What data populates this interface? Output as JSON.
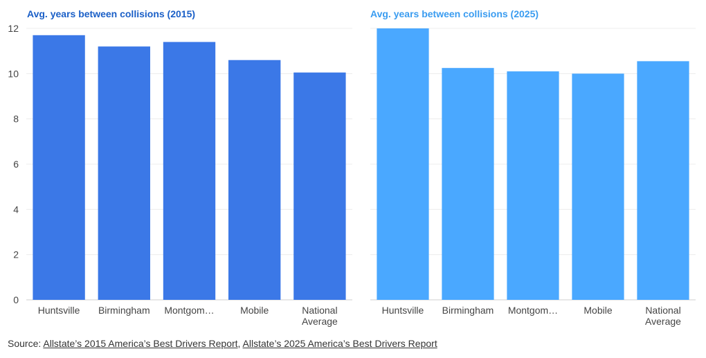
{
  "chart_data": [
    {
      "type": "bar",
      "title": "Avg. years between collisions (2015)",
      "categories": [
        "Huntsville",
        "Birmingham",
        "Montgom…",
        "Mobile",
        "National Average"
      ],
      "values": [
        11.7,
        11.2,
        11.4,
        10.6,
        10.05
      ],
      "ylim": [
        0,
        12
      ],
      "yticks": [
        0,
        2,
        4,
        6,
        8,
        10,
        12
      ],
      "xlabel": "",
      "ylabel": "",
      "grid": true,
      "color": "#3b78e7"
    },
    {
      "type": "bar",
      "title": "Avg. years between collisions (2025)",
      "categories": [
        "Huntsville",
        "Birmingham",
        "Montgom…",
        "Mobile",
        "National Average"
      ],
      "values": [
        12.0,
        10.25,
        10.1,
        10.0,
        10.55
      ],
      "ylim": [
        0,
        12
      ],
      "yticks": [
        0,
        2,
        4,
        6,
        8,
        10,
        12
      ],
      "xlabel": "",
      "ylabel": "",
      "grid": true,
      "color": "#4aa8ff"
    }
  ],
  "titles": {
    "left": "Avg. years between collisions (2015)",
    "right": "Avg. years between collisions (2025)",
    "left_color": "#1a5fc7",
    "right_color": "#3a9cf0"
  },
  "source": {
    "prefix": "Source: ",
    "link1": "Allstate’s 2015 America’s Best Drivers Report",
    "separator": ", ",
    "link2": "Allstate’s 2025 America’s Best Drivers Report"
  }
}
